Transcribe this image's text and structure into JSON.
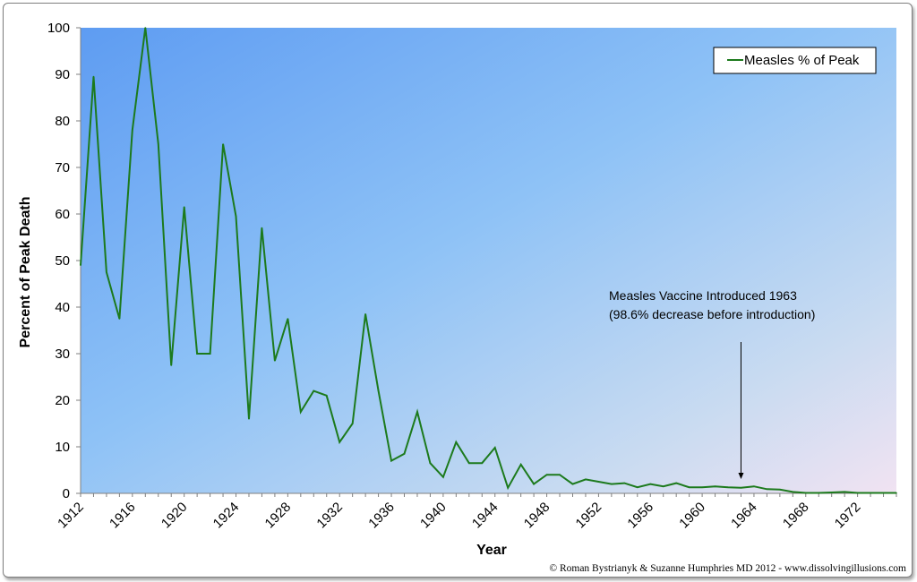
{
  "chart_data": {
    "type": "line",
    "xlabel": "Year",
    "ylabel": "Percent of Peak Death",
    "ylim": [
      0,
      100
    ],
    "yticks": [
      0,
      10,
      20,
      30,
      40,
      50,
      60,
      70,
      80,
      90,
      100
    ],
    "xlim": [
      1912,
      1975
    ],
    "xticks": [
      1912,
      1916,
      1920,
      1924,
      1928,
      1932,
      1936,
      1940,
      1944,
      1948,
      1952,
      1956,
      1960,
      1964,
      1968,
      1972
    ],
    "grid": false,
    "legend": {
      "position": "top-right"
    },
    "series": [
      {
        "name": "Measles % of Peak",
        "color": "#1c7a1c",
        "x": [
          1912,
          1913,
          1914,
          1915,
          1916,
          1917,
          1918,
          1919,
          1920,
          1921,
          1922,
          1923,
          1924,
          1925,
          1926,
          1927,
          1928,
          1929,
          1930,
          1931,
          1932,
          1933,
          1934,
          1935,
          1936,
          1937,
          1938,
          1939,
          1940,
          1941,
          1942,
          1943,
          1944,
          1945,
          1946,
          1947,
          1948,
          1949,
          1950,
          1951,
          1952,
          1953,
          1954,
          1955,
          1956,
          1957,
          1958,
          1959,
          1960,
          1961,
          1962,
          1963,
          1964,
          1965,
          1966,
          1967,
          1968,
          1969,
          1970,
          1971,
          1972,
          1973,
          1974,
          1975
        ],
        "y": [
          49,
          89.5,
          47.5,
          37.5,
          78,
          100,
          75,
          27.5,
          61.5,
          30,
          30,
          75,
          59.5,
          16,
          57,
          28.5,
          37.5,
          17.5,
          22,
          21,
          11,
          15,
          38.5,
          22,
          7,
          8.5,
          17.5,
          6.5,
          3.5,
          11,
          6.5,
          6.5,
          9.8,
          1.2,
          6.2,
          2,
          4,
          4,
          2,
          3,
          2.5,
          2,
          2.2,
          1.3,
          2,
          1.5,
          2.2,
          1.3,
          1.3,
          1.5,
          1.3,
          1.2,
          1.5,
          0.9,
          0.8,
          0.3,
          0.1,
          0.1,
          0.2,
          0.3,
          0.1,
          0.1,
          0.1,
          0.1
        ]
      }
    ],
    "annotations": [
      {
        "line1": "Measles Vaccine Introduced 1963",
        "line2": "(98.6% decrease before introduction)",
        "x": 1963
      }
    ]
  },
  "credit": "© Roman Bystrianyk & Suzanne Humphries MD 2012 - www.dissolvingillusions.com"
}
